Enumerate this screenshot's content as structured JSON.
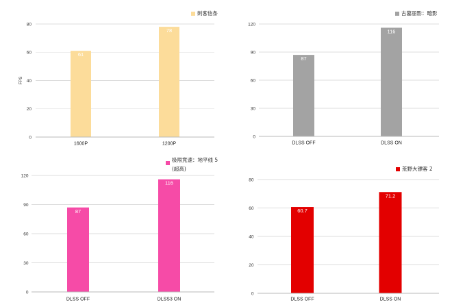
{
  "chart_data": [
    {
      "type": "bar",
      "categories": [
        "1600P",
        "1200P"
      ],
      "series": [
        {
          "name": "刺客信条",
          "values": [
            61,
            78
          ],
          "color": "#FCDC9A"
        }
      ],
      "ylabel": "FPS",
      "ylim": [
        0,
        80
      ],
      "yticks": [
        0,
        20,
        40,
        60,
        80
      ],
      "data_labels": true,
      "grid": true,
      "legend": "top-right"
    },
    {
      "type": "bar",
      "categories": [
        "DLSS OFF",
        "DLSS ON"
      ],
      "series": [
        {
          "name": "古墓丽影：暗影",
          "values": [
            87,
            116
          ],
          "color": "#A3A3A3"
        }
      ],
      "ylim": [
        0,
        120
      ],
      "yticks": [
        0,
        30,
        60,
        90,
        120
      ],
      "data_labels": true,
      "grid": true,
      "legend": "top-right"
    },
    {
      "type": "bar",
      "categories": [
        "DLSS OFF",
        "DLSS3 ON"
      ],
      "series": [
        {
          "name": "极限竞速：地平线 5 (超高)",
          "values": [
            87,
            116
          ],
          "color": "#F64BA7"
        }
      ],
      "ylim": [
        0,
        120
      ],
      "yticks": [
        0,
        30,
        60,
        90,
        120
      ],
      "data_labels": true,
      "grid": true,
      "legend": "top-right"
    },
    {
      "type": "bar",
      "categories": [
        "DLSS OFF",
        "DLSS ON"
      ],
      "series": [
        {
          "name": "荒野大镖客 2",
          "values": [
            60.7,
            71.2
          ],
          "color": "#E30000"
        }
      ],
      "ylim": [
        0,
        80
      ],
      "yticks": [
        0,
        20,
        40,
        60,
        80
      ],
      "data_labels": true,
      "grid": true,
      "legend": "top-right"
    }
  ]
}
